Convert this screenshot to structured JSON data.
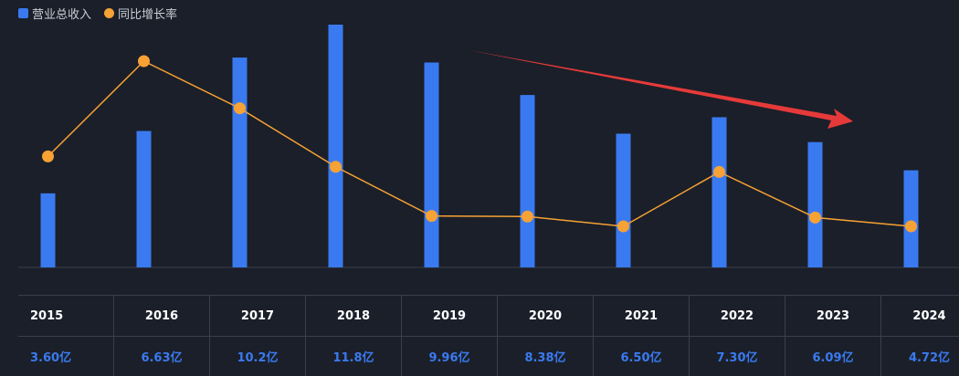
{
  "chart_data": {
    "type": "bar",
    "categories": [
      "2015",
      "2016",
      "2017",
      "2018",
      "2019",
      "2020",
      "2021",
      "2022",
      "2023",
      "2024"
    ],
    "series": [
      {
        "name": "营业总收入",
        "type": "bar",
        "color": "#3a7af0",
        "values": [
          3.6,
          6.63,
          10.2,
          11.8,
          9.96,
          8.38,
          6.5,
          7.3,
          6.09,
          4.72
        ],
        "unit": "亿"
      },
      {
        "name": "同比增长率",
        "type": "line",
        "color": "#f7a234",
        "values": [
          10.0,
          28.4,
          19.3,
          8.0,
          -1.5,
          -1.6,
          -3.5,
          7.0,
          -1.8,
          -3.5
        ]
      }
    ],
    "value_labels": [
      "3.60亿",
      "6.63亿",
      "10.2亿",
      "11.8亿",
      "9.96亿",
      "8.38亿",
      "6.50亿",
      "7.30亿",
      "6.09亿",
      "4.72亿"
    ],
    "annotation": "red downward trend arrow",
    "trend_arrow_color": "#e63a3a"
  }
}
